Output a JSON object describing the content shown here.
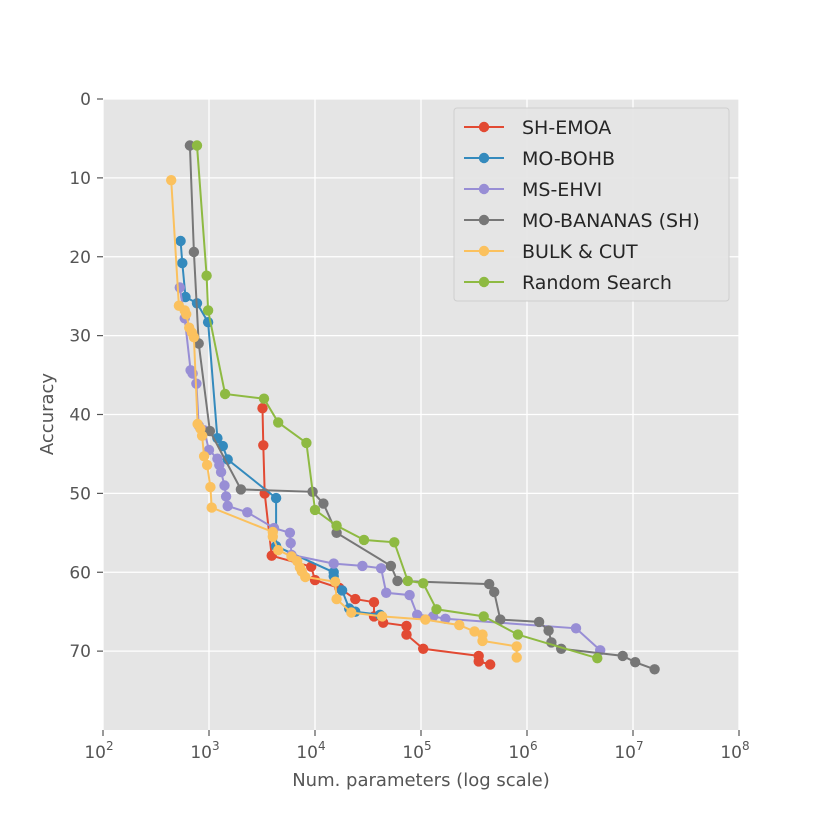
{
  "chart_data": {
    "type": "line",
    "title": "",
    "xlabel": "Num. parameters (log scale)",
    "ylabel": "Accuracy",
    "x_scale": "log",
    "xlim": [
      100,
      100000000
    ],
    "ylim": [
      80,
      0
    ],
    "x_ticks": [
      {
        "value": 100,
        "base": "10",
        "exp": "2"
      },
      {
        "value": 1000,
        "base": "10",
        "exp": "3"
      },
      {
        "value": 10000,
        "base": "10",
        "exp": "4"
      },
      {
        "value": 100000,
        "base": "10",
        "exp": "5"
      },
      {
        "value": 1000000,
        "base": "10",
        "exp": "6"
      },
      {
        "value": 10000000,
        "base": "10",
        "exp": "7"
      },
      {
        "value": 100000000,
        "base": "10",
        "exp": "8"
      }
    ],
    "y_ticks": [
      0,
      10,
      20,
      30,
      40,
      50,
      60,
      70
    ],
    "grid": true,
    "legend_position": "top-right",
    "series": [
      {
        "name": "SH-EMOA",
        "color": "#E24A33",
        "points": [
          [
            3200,
            39.2
          ],
          [
            3250,
            43.9
          ],
          [
            3350,
            50
          ],
          [
            3900,
            57.9
          ],
          [
            9200,
            59.3
          ],
          [
            10000,
            61
          ],
          [
            17000,
            62
          ],
          [
            24000,
            63.4
          ],
          [
            36000,
            63.8
          ],
          [
            36000,
            65.6
          ],
          [
            44000,
            66.4
          ],
          [
            73000,
            66.8
          ],
          [
            73000,
            67.9
          ],
          [
            105000,
            69.7
          ],
          [
            350000,
            70.6
          ],
          [
            350000,
            71.3
          ],
          [
            450000,
            71.7
          ]
        ]
      },
      {
        "name": "MO-BOHB",
        "color": "#348ABD",
        "points": [
          [
            540,
            18
          ],
          [
            560,
            20.8
          ],
          [
            600,
            25.1
          ],
          [
            770,
            25.9
          ],
          [
            980,
            28.3
          ],
          [
            1200,
            43
          ],
          [
            1350,
            44
          ],
          [
            1500,
            45.7
          ],
          [
            4300,
            50.6
          ],
          [
            4300,
            56.7
          ],
          [
            15000,
            60
          ],
          [
            15000,
            60.5
          ],
          [
            18000,
            62.3
          ],
          [
            21000,
            64.6
          ],
          [
            24000,
            65
          ],
          [
            41000,
            65.4
          ]
        ]
      },
      {
        "name": "MS-EHVI",
        "color": "#988ED5",
        "points": [
          [
            530,
            23.9
          ],
          [
            590,
            27.8
          ],
          [
            670,
            34.4
          ],
          [
            700,
            34.8
          ],
          [
            760,
            36.1
          ],
          [
            800,
            41.4
          ],
          [
            900,
            42
          ],
          [
            1000,
            44.5
          ],
          [
            1200,
            45.6
          ],
          [
            1250,
            46.4
          ],
          [
            1300,
            47.3
          ],
          [
            1400,
            49
          ],
          [
            1450,
            50.4
          ],
          [
            1500,
            51.6
          ],
          [
            2300,
            52.4
          ],
          [
            4100,
            54.4
          ],
          [
            5800,
            55
          ],
          [
            5900,
            56.3
          ],
          [
            6000,
            57.8
          ],
          [
            15000,
            58.9
          ],
          [
            28000,
            59.2
          ],
          [
            42000,
            59.5
          ],
          [
            47000,
            62.6
          ],
          [
            78000,
            62.9
          ],
          [
            92000,
            65.4
          ],
          [
            130000,
            65.6
          ],
          [
            170000,
            65.9
          ],
          [
            2900000,
            67.1
          ],
          [
            4900000,
            69.9
          ]
        ]
      },
      {
        "name": "MO-BANANAS (SH)",
        "color": "#777777",
        "points": [
          [
            660,
            5.9
          ],
          [
            720,
            19.4
          ],
          [
            800,
            31
          ],
          [
            1020,
            42.1
          ],
          [
            2000,
            49.5
          ],
          [
            9500,
            49.8
          ],
          [
            12000,
            51.3
          ],
          [
            16000,
            55
          ],
          [
            52000,
            59.2
          ],
          [
            60000,
            61.1
          ],
          [
            440000,
            61.5
          ],
          [
            490000,
            62.5
          ],
          [
            560000,
            66
          ],
          [
            1300000,
            66.3
          ],
          [
            1600000,
            67.4
          ],
          [
            1700000,
            68.9
          ],
          [
            2100000,
            69.7
          ],
          [
            8000000,
            70.6
          ],
          [
            10500000,
            71.4
          ],
          [
            16000000,
            72.3
          ]
        ]
      },
      {
        "name": "BULK & CUT",
        "color": "#FBC15E",
        "points": [
          [
            440,
            10.3
          ],
          [
            520,
            26.2
          ],
          [
            590,
            26.8
          ],
          [
            610,
            27.3
          ],
          [
            650,
            29
          ],
          [
            690,
            29.6
          ],
          [
            720,
            30.2
          ],
          [
            780,
            41.2
          ],
          [
            830,
            41.8
          ],
          [
            860,
            42.7
          ],
          [
            900,
            45.3
          ],
          [
            960,
            46.4
          ],
          [
            1030,
            49.2
          ],
          [
            1060,
            51.8
          ],
          [
            4000,
            54.9
          ],
          [
            4000,
            55.5
          ],
          [
            4500,
            57.2
          ],
          [
            6000,
            58
          ],
          [
            6800,
            58.6
          ],
          [
            7200,
            59.4
          ],
          [
            7500,
            59.9
          ],
          [
            8100,
            60.6
          ],
          [
            15500,
            61.2
          ],
          [
            16000,
            63.4
          ],
          [
            22000,
            65.1
          ],
          [
            43000,
            65.6
          ],
          [
            110000,
            66
          ],
          [
            230000,
            66.7
          ],
          [
            320000,
            67.5
          ],
          [
            380000,
            67.9
          ],
          [
            380000,
            68.7
          ],
          [
            800000,
            69.4
          ],
          [
            800000,
            70.8
          ]
        ]
      },
      {
        "name": "Random Search",
        "color": "#8EBA42",
        "points": [
          [
            770,
            5.9
          ],
          [
            950,
            22.4
          ],
          [
            980,
            26.8
          ],
          [
            1420,
            37.4
          ],
          [
            3300,
            38
          ],
          [
            4500,
            41
          ],
          [
            8300,
            43.6
          ],
          [
            10000,
            52.1
          ],
          [
            16000,
            54.1
          ],
          [
            29000,
            55.9
          ],
          [
            56000,
            56.2
          ],
          [
            75000,
            61.1
          ],
          [
            105000,
            61.4
          ],
          [
            140000,
            64.7
          ],
          [
            390000,
            65.6
          ],
          [
            820000,
            67.9
          ],
          [
            4600000,
            70.9
          ]
        ]
      }
    ]
  }
}
